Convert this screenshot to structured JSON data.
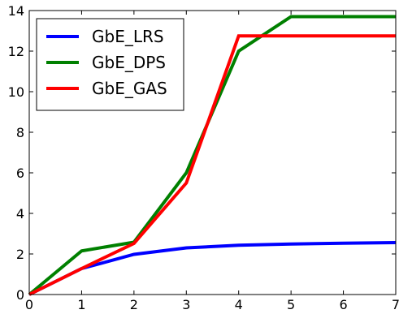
{
  "chart_data": {
    "type": "line",
    "title": "",
    "xlabel": "",
    "ylabel": "",
    "xlim": [
      0,
      7
    ],
    "ylim": [
      0,
      14
    ],
    "x_ticks": [
      "0",
      "1",
      "2",
      "3",
      "4",
      "5",
      "6",
      "7"
    ],
    "y_ticks": [
      "0",
      "2",
      "4",
      "6",
      "8",
      "10",
      "12",
      "14"
    ],
    "grid": false,
    "legend_position": "upper-left",
    "series": [
      {
        "name": "GbE_LRS",
        "color": "#0000ff",
        "x": [
          0,
          1,
          2,
          3,
          4,
          5,
          6,
          7
        ],
        "values": [
          0,
          1.28,
          1.98,
          2.3,
          2.43,
          2.49,
          2.53,
          2.56
        ]
      },
      {
        "name": "GbE_DPS",
        "color": "#008000",
        "x": [
          0,
          1,
          2,
          3,
          4,
          5,
          6,
          7
        ],
        "values": [
          0,
          2.15,
          2.58,
          6.0,
          12.0,
          13.7,
          13.7,
          13.7
        ]
      },
      {
        "name": "GbE_GAS",
        "color": "#ff0000",
        "x": [
          0,
          1,
          2,
          3,
          4,
          5,
          6,
          7
        ],
        "values": [
          0,
          1.28,
          2.52,
          5.5,
          12.75,
          12.75,
          12.75,
          12.75
        ]
      }
    ]
  }
}
